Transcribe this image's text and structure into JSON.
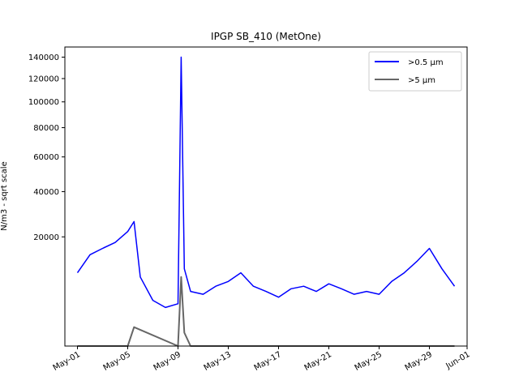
{
  "chart_data": {
    "type": "line",
    "title": "IPGP SB_410 (MetOne)",
    "xlabel": "",
    "ylabel": "N/m3 - sqrt scale",
    "y_scale": "sqrt",
    "ylim": [
      0,
      150000
    ],
    "xlim": [
      "2024-04-30",
      "2024-06-01"
    ],
    "y_ticks": [
      20000,
      40000,
      60000,
      80000,
      100000,
      120000,
      140000
    ],
    "y_tick_labels": [
      "20000",
      "40000",
      "60000",
      "80000",
      "100000",
      "120000",
      "140000"
    ],
    "x_ticks": [
      "2024-05-01",
      "2024-05-05",
      "2024-05-09",
      "2024-05-13",
      "2024-05-17",
      "2024-05-21",
      "2024-05-25",
      "2024-05-29",
      "2024-06-01"
    ],
    "x_tick_labels": [
      "May-01",
      "May-05",
      "May-09",
      "May-13",
      "May-17",
      "May-21",
      "May-25",
      "May-29",
      "Jun-01"
    ],
    "grid": false,
    "legend_position": "top-right",
    "series": [
      {
        "name": ">0.5 µm",
        "color": "#0000ff",
        "x": [
          "2024-05-01",
          "2024-05-02",
          "2024-05-03",
          "2024-05-04",
          "2024-05-05",
          "2024-05-05T12:00",
          "2024-05-06",
          "2024-05-07",
          "2024-05-08",
          "2024-05-09",
          "2024-05-09T06:00",
          "2024-05-09T12:00",
          "2024-05-10",
          "2024-05-11",
          "2024-05-12",
          "2024-05-13",
          "2024-05-14",
          "2024-05-15",
          "2024-05-16",
          "2024-05-17",
          "2024-05-18",
          "2024-05-19",
          "2024-05-20",
          "2024-05-21",
          "2024-05-22",
          "2024-05-23",
          "2024-05-24",
          "2024-05-25",
          "2024-05-26",
          "2024-05-27",
          "2024-05-28",
          "2024-05-29",
          "2024-05-30",
          "2024-05-31"
        ],
        "values": [
          9000,
          14000,
          16000,
          18000,
          22000,
          26000,
          8000,
          3500,
          2500,
          3000,
          140000,
          10000,
          5000,
          4500,
          6000,
          7000,
          9000,
          6000,
          5000,
          4000,
          5500,
          6000,
          5000,
          6500,
          5500,
          4500,
          5000,
          4500,
          7000,
          9000,
          12000,
          16000,
          10000,
          6000
        ]
      },
      {
        "name": ">5 µm",
        "color": "#666666",
        "x": [
          "2024-05-01",
          "2024-05-05",
          "2024-05-05T12:00",
          "2024-05-09",
          "2024-05-09T06:00",
          "2024-05-09T12:00",
          "2024-05-10",
          "2024-05-31"
        ],
        "values": [
          0,
          0,
          600,
          0,
          8000,
          300,
          0,
          0
        ]
      }
    ]
  }
}
